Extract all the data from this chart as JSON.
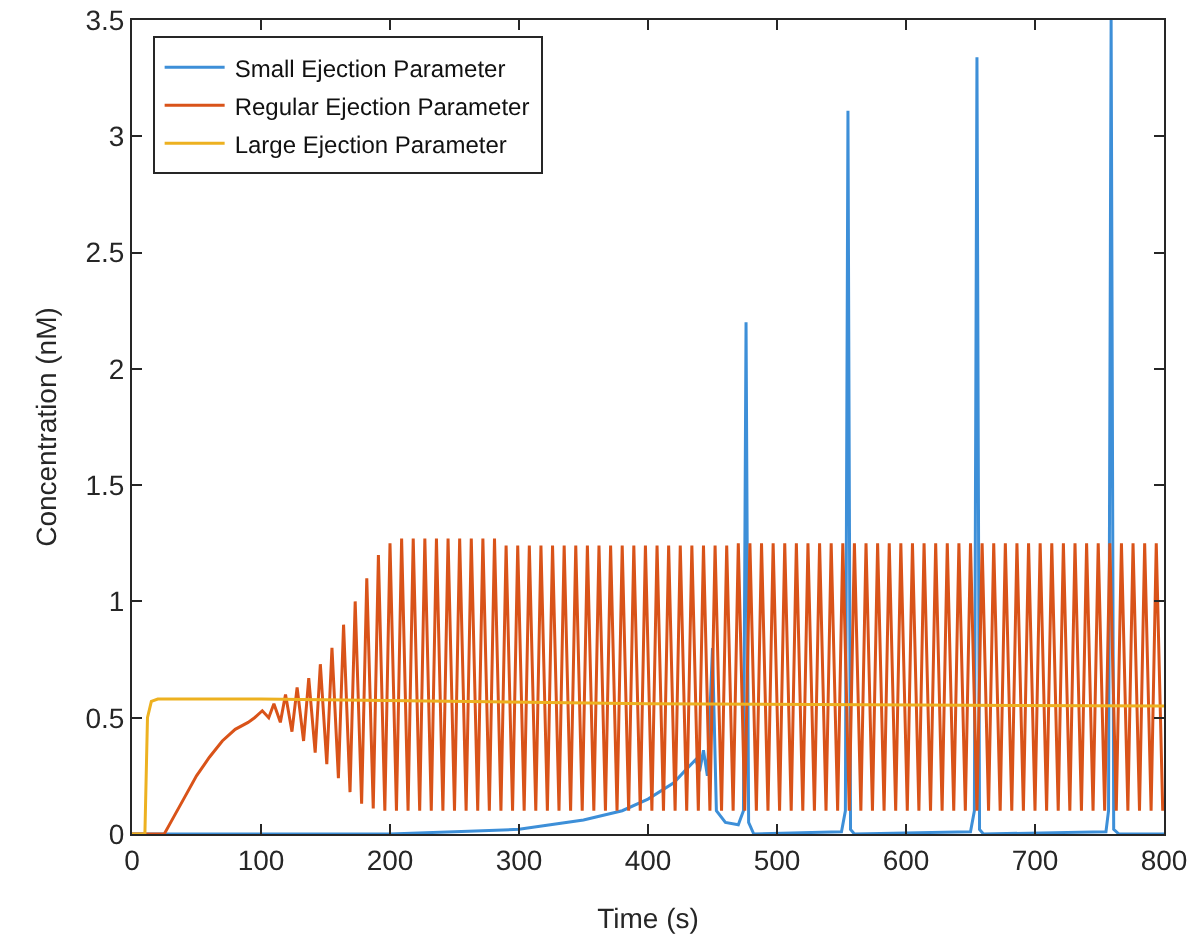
{
  "chart_data": {
    "type": "line",
    "xlabel": "Time (s)",
    "ylabel": "Concentration (nM)",
    "xlim": [
      0,
      800
    ],
    "xticks": [
      0,
      100,
      200,
      300,
      400,
      500,
      600,
      700,
      800
    ],
    "ylim": [
      0,
      3.5
    ],
    "yticks": [
      0,
      0.5,
      1,
      1.5,
      2,
      2.5,
      3,
      3.5
    ],
    "grid": false,
    "legend": "top left",
    "marker": "none",
    "line_style": "solid",
    "series": [
      {
        "name": "Small Ejection Parameter",
        "color": "#3d8fd8",
        "x": [
          0,
          200,
          250,
          300,
          350,
          380,
          400,
          420,
          430,
          437,
          440,
          443,
          446,
          450,
          453,
          460,
          470,
          474,
          476,
          478,
          482,
          550,
          553,
          555,
          557,
          560,
          650,
          653,
          655,
          657,
          660,
          755,
          757,
          759,
          761,
          765,
          800
        ],
        "values": [
          0,
          0,
          0.01,
          0.02,
          0.06,
          0.1,
          0.15,
          0.22,
          0.28,
          0.32,
          0.27,
          0.36,
          0.25,
          0.8,
          0.1,
          0.05,
          0.04,
          0.1,
          2.2,
          0.05,
          0,
          0.01,
          0.1,
          3.11,
          0.02,
          0,
          0.01,
          0.1,
          3.34,
          0.02,
          0,
          0.01,
          0.1,
          3.5,
          0.02,
          0,
          0
        ]
      },
      {
        "name": "Regular Ejection Parameter",
        "color": "#d95319",
        "x": [
          0,
          25,
          30,
          40,
          50,
          60,
          70,
          80,
          90,
          95,
          101,
          106,
          110,
          115,
          119,
          124,
          128,
          133,
          137,
          142,
          146,
          151,
          155,
          160,
          164,
          169,
          173,
          178,
          182,
          187,
          191,
          196,
          200,
          205,
          209,
          214,
          218,
          223,
          227,
          232,
          236,
          241,
          245,
          250,
          254,
          259,
          263,
          268,
          272,
          277,
          281,
          286,
          290,
          295,
          299,
          304,
          308,
          313,
          317,
          322,
          326,
          331,
          335,
          340,
          344,
          349,
          353,
          358,
          362,
          367,
          371,
          376,
          380,
          385,
          389,
          394,
          398,
          403,
          407,
          412,
          416,
          421,
          425,
          430,
          434,
          439,
          443,
          448,
          452,
          457,
          461,
          466,
          470,
          475,
          479,
          484,
          488,
          493,
          497,
          502,
          506,
          511,
          515,
          520,
          524,
          529,
          533,
          538,
          542,
          547,
          551,
          556,
          560,
          565,
          569,
          574,
          578,
          583,
          587,
          592,
          596,
          601,
          605,
          610,
          614,
          619,
          623,
          628,
          632,
          637,
          641,
          646,
          650,
          655,
          659,
          664,
          668,
          673,
          677,
          682,
          686,
          691,
          695,
          700,
          704,
          709,
          713,
          718,
          722,
          727,
          731,
          736,
          740,
          745,
          749,
          754,
          758,
          763,
          767,
          772,
          776,
          781,
          785,
          790,
          794,
          799
        ],
        "values": [
          0,
          0,
          0.05,
          0.15,
          0.25,
          0.33,
          0.4,
          0.45,
          0.48,
          0.5,
          0.53,
          0.5,
          0.56,
          0.48,
          0.6,
          0.44,
          0.63,
          0.4,
          0.67,
          0.35,
          0.73,
          0.3,
          0.8,
          0.24,
          0.9,
          0.18,
          1.0,
          0.13,
          1.1,
          0.11,
          1.2,
          0.1,
          1.25,
          0.1,
          1.27,
          0.1,
          1.27,
          0.1,
          1.27,
          0.1,
          1.27,
          0.1,
          1.27,
          0.1,
          1.27,
          0.1,
          1.27,
          0.1,
          1.27,
          0.1,
          1.27,
          0.1,
          1.24,
          0.1,
          1.24,
          0.1,
          1.24,
          0.1,
          1.24,
          0.1,
          1.24,
          0.1,
          1.24,
          0.1,
          1.24,
          0.1,
          1.24,
          0.1,
          1.24,
          0.1,
          1.24,
          0.1,
          1.24,
          0.1,
          1.24,
          0.1,
          1.24,
          0.1,
          1.24,
          0.1,
          1.24,
          0.1,
          1.24,
          0.1,
          1.24,
          0.1,
          1.24,
          0.1,
          1.24,
          0.1,
          1.24,
          0.1,
          1.25,
          0.1,
          1.25,
          0.1,
          1.25,
          0.1,
          1.25,
          0.1,
          1.25,
          0.1,
          1.25,
          0.1,
          1.25,
          0.1,
          1.25,
          0.1,
          1.25,
          0.1,
          1.25,
          0.1,
          1.25,
          0.1,
          1.25,
          0.1,
          1.25,
          0.1,
          1.25,
          0.1,
          1.25,
          0.1,
          1.25,
          0.1,
          1.25,
          0.1,
          1.25,
          0.1,
          1.25,
          0.1,
          1.25,
          0.1,
          1.25,
          0.1,
          1.25,
          0.1,
          1.25,
          0.1,
          1.25,
          0.1,
          1.25,
          0.1,
          1.25,
          0.1,
          1.25,
          0.1,
          1.25,
          0.1,
          1.25,
          0.1,
          1.25,
          0.1,
          1.25,
          0.1,
          1.25,
          0.1,
          1.25,
          0.1,
          1.25,
          0.1,
          1.25,
          0.1,
          1.25,
          0.1,
          1.25,
          0.1
        ]
      },
      {
        "name": "Large Ejection Parameter",
        "color": "#edb120",
        "x": [
          0,
          10,
          12,
          15,
          20,
          100,
          400,
          800
        ],
        "values": [
          0,
          0,
          0.5,
          0.57,
          0.58,
          0.58,
          0.56,
          0.55
        ]
      }
    ]
  }
}
